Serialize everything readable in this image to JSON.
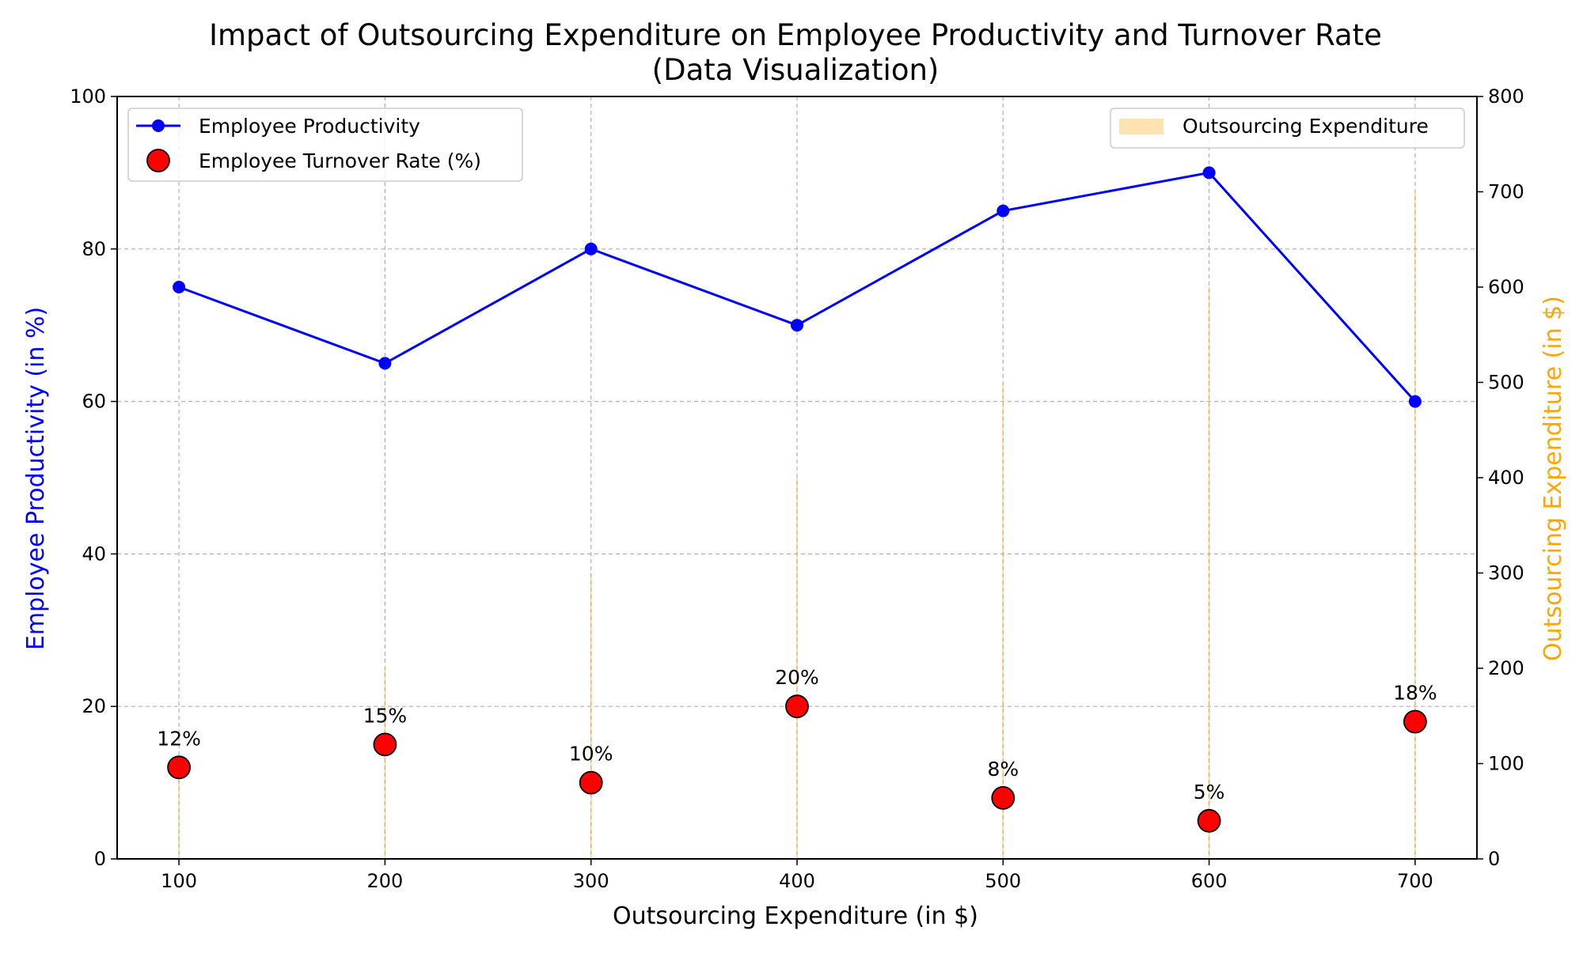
{
  "chart_data": {
    "type": "line",
    "title": "Impact of Outsourcing Expenditure on Employee Productivity and Turnover Rate",
    "subtitle": "(Data Visualization)",
    "xlabel": "Outsourcing Expenditure (in $)",
    "ylabel": "Employee Productivity (in %)",
    "y2label": "Outsourcing Expenditure (in $)",
    "x": [
      100,
      200,
      300,
      400,
      500,
      600,
      700
    ],
    "xlim": [
      70,
      730
    ],
    "ylim": [
      0,
      100
    ],
    "y2lim": [
      0,
      800
    ],
    "x_ticks": [
      "100",
      "200",
      "300",
      "400",
      "500",
      "600",
      "700"
    ],
    "y_ticks": [
      "0",
      "20",
      "40",
      "60",
      "80",
      "100"
    ],
    "y2_ticks": [
      "0",
      "100",
      "200",
      "300",
      "400",
      "500",
      "600",
      "700",
      "800"
    ],
    "grid": true,
    "series": [
      {
        "name": "Employee Productivity",
        "type": "line",
        "axis": "left",
        "values": [
          75,
          65,
          80,
          70,
          85,
          90,
          60
        ],
        "color": "#0000ff"
      },
      {
        "name": "Employee Turnover Rate (%)",
        "type": "scatter",
        "axis": "left",
        "values": [
          12,
          15,
          10,
          20,
          8,
          5,
          18
        ],
        "labels": [
          "12%",
          "15%",
          "10%",
          "20%",
          "8%",
          "5%",
          "18%"
        ],
        "color": "#ff0000"
      },
      {
        "name": "Outsourcing Expenditure",
        "type": "bar",
        "axis": "right",
        "values": [
          100,
          200,
          300,
          400,
          500,
          600,
          700
        ],
        "color": "#ffa500"
      }
    ],
    "legend_left": "top-left",
    "legend_right": "top-right",
    "colors": {
      "ylabel": "#0000ff",
      "y2label": "#ffa500",
      "bar_fill": "#ffa500",
      "grid": "#b0b0b0"
    }
  }
}
